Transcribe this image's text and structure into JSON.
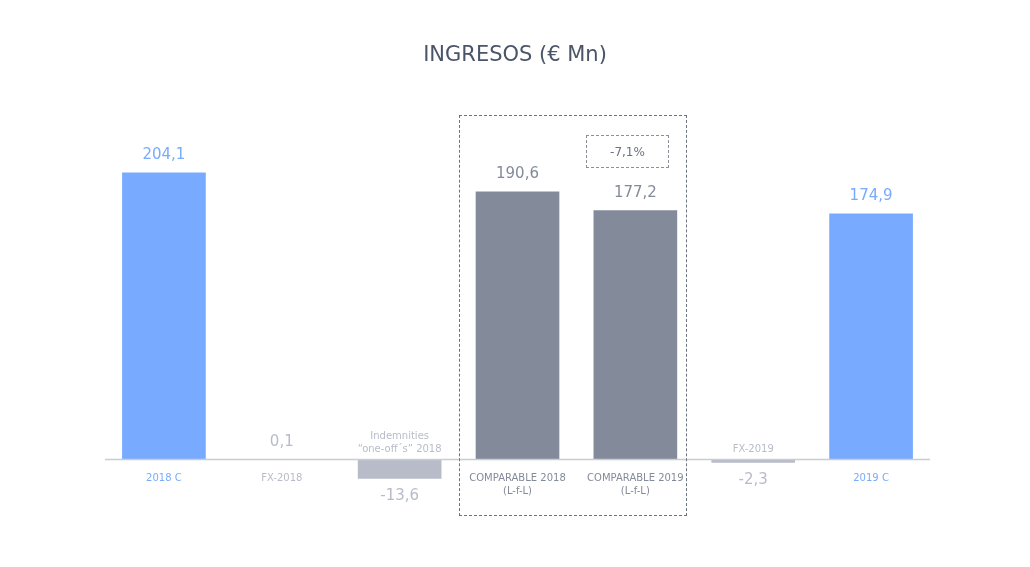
{
  "chart_data": {
    "type": "bar",
    "title": "INGRESOS (€ Mn)",
    "categories": [
      "2018 C",
      "FX-2018",
      "Indemnities “one-off´s” 2018",
      "COMPARABLE 2018 (L-f-L)",
      "COMPARABLE 2019 (L-f-L)",
      "FX-2019",
      "2019 C"
    ],
    "values": [
      204.1,
      0.1,
      -13.6,
      190.6,
      177.2,
      -2.3,
      174.9
    ],
    "value_labels": [
      "204,1",
      "0,1",
      "-13,6",
      "190,6",
      "177,2",
      "-2,3",
      "174,9"
    ],
    "colors": [
      "#78abff",
      "#b8bcc8",
      "#b8bcc8",
      "#838b9a",
      "#838b9a",
      "#b8bcc8",
      "#78abff"
    ],
    "tick_labels": "x",
    "legend": false,
    "annotations": [
      "-7,1%"
    ]
  }
}
